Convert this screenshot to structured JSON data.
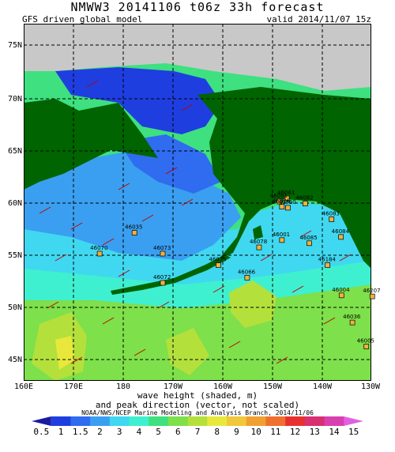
{
  "header": {
    "title": "NMWW3 20141106 t06z    33h forecast",
    "model": "GFS driven global model",
    "valid": "valid 2014/11/07 15z"
  },
  "axes": {
    "lat_labels": [
      "75N",
      "70N",
      "65N",
      "60N",
      "55N",
      "50N",
      "45N"
    ],
    "lon_labels": [
      "160E",
      "170E",
      "180",
      "170W",
      "160W",
      "150W",
      "140W",
      "130W"
    ]
  },
  "caption": {
    "line1": "wave height (shaded, m)",
    "line2": "and peak direction (vector, not scaled)",
    "credit": "NOAA/NWS/NCEP Marine Modeling and Analysis Branch, 2014/11/06"
  },
  "colorbar": {
    "labels": [
      "0.5",
      "1",
      "1.5",
      "2",
      "3",
      "4",
      "5",
      "6",
      "7",
      "8",
      "9",
      "10",
      "11",
      "12",
      "13",
      "14",
      "15"
    ],
    "colors": [
      "#1a1aa0",
      "#1f3ee0",
      "#2f6cf0",
      "#3a9ff0",
      "#3fd8f0",
      "#3ff0d0",
      "#3ee080",
      "#7ee04a",
      "#b4e03c",
      "#e8e83c",
      "#f0c83a",
      "#f0a030",
      "#f07030",
      "#e83030",
      "#d83070",
      "#d840b0",
      "#e060e0"
    ]
  },
  "buoys": [
    {
      "id": "46061",
      "lon": -147.0,
      "lat": 60.3
    },
    {
      "id": "46082",
      "lon": -143.3,
      "lat": 59.8
    },
    {
      "id": "46081",
      "lon": -148.5,
      "lat": 60.0
    },
    {
      "id": "46060",
      "lon": -146.8,
      "lat": 59.4
    },
    {
      "id": "46083",
      "lon": -138.0,
      "lat": 58.3
    },
    {
      "id": "46085",
      "lon": -142.5,
      "lat": 56.0
    },
    {
      "id": "46001",
      "lon": -148.0,
      "lat": 56.3
    },
    {
      "id": "46084",
      "lon": -136.1,
      "lat": 56.6
    },
    {
      "id": "46076",
      "lon": -148.0,
      "lat": 59.5
    },
    {
      "id": "46078",
      "lon": -152.6,
      "lat": 55.6
    },
    {
      "id": "46035",
      "lon": -177.7,
      "lat": 57.0
    },
    {
      "id": "46070",
      "lon": 175.3,
      "lat": 55.0
    },
    {
      "id": "46073",
      "lon": -172.0,
      "lat": 55.0
    },
    {
      "id": "46075",
      "lon": -160.8,
      "lat": 53.9
    },
    {
      "id": "46072",
      "lon": -172.0,
      "lat": 52.2
    },
    {
      "id": "46066",
      "lon": -155.0,
      "lat": 52.7
    },
    {
      "id": "46184",
      "lon": -138.8,
      "lat": 53.9
    },
    {
      "id": "46004",
      "lon": -136.0,
      "lat": 51.0
    },
    {
      "id": "46207",
      "lon": -129.8,
      "lat": 50.9
    },
    {
      "id": "46036",
      "lon": -133.8,
      "lat": 48.4
    },
    {
      "id": "46005",
      "lon": -131.0,
      "lat": 46.1
    }
  ]
}
